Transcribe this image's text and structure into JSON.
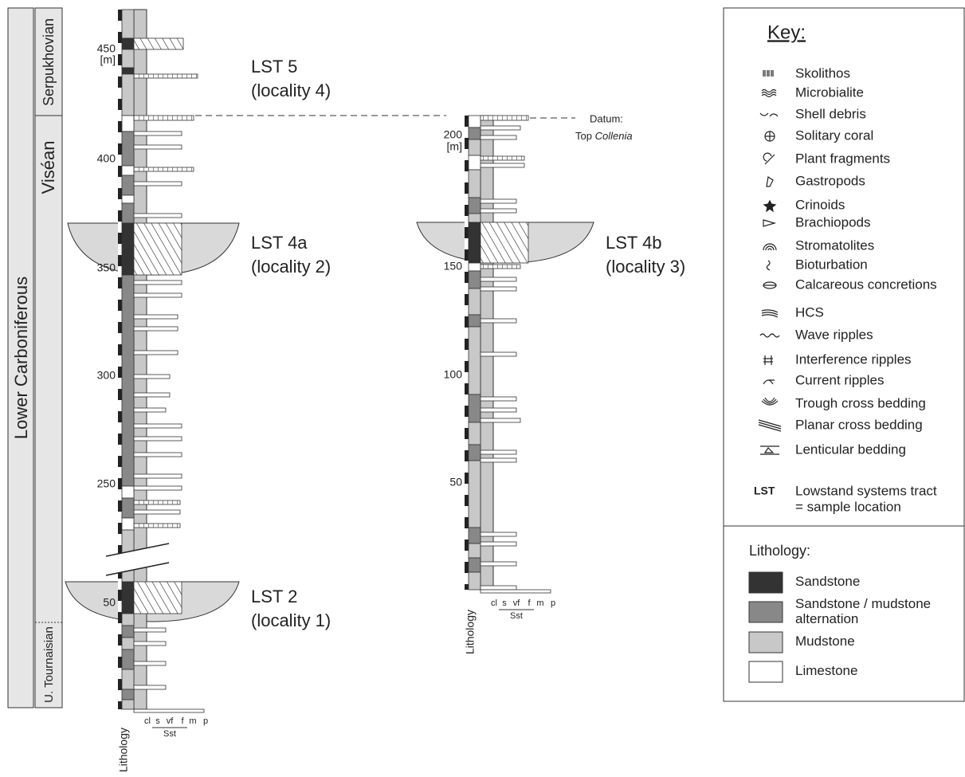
{
  "chronostratigraphy": {
    "system": "Lower Carboniferous",
    "stages": [
      "Serpukhovian",
      "Viséan",
      "U. Tournaisian"
    ]
  },
  "sections": [
    {
      "depth_labels": [
        450,
        "[m]",
        400,
        350,
        300,
        250,
        50
      ],
      "lst_labels": [
        {
          "name": "LST 5",
          "locality": "(locality 4)"
        },
        {
          "name": "LST 4a",
          "locality": "(locality 2)"
        },
        {
          "name": "LST 2",
          "locality": "(locality 1)"
        }
      ],
      "lithology_label": "Lithology",
      "grain_sizes": [
        "cl",
        "s",
        "vf",
        "f",
        "m",
        "p"
      ],
      "grain_group": "Sst"
    },
    {
      "depth_labels": [
        200,
        "[m]",
        150,
        100,
        50
      ],
      "lst_labels": [
        {
          "name": "LST 4b",
          "locality": "(locality 3)"
        }
      ],
      "lithology_label": "Lithology",
      "grain_sizes": [
        "cl",
        "s",
        "vf",
        "f",
        "m",
        "p"
      ],
      "grain_group": "Sst"
    }
  ],
  "datum": {
    "label": "Datum:",
    "prefix": "Top",
    "name": "Collenia"
  },
  "key": {
    "title": "Key:",
    "symbols": [
      "Skolithos",
      "Microbialite",
      "Shell debris",
      "Solitary coral",
      "Plant fragments",
      "Gastropods",
      "Crinoids",
      "Brachiopods",
      "Stromatolites",
      "Bioturbation",
      "Calcareous concretions",
      "HCS",
      "Wave ripples",
      "Interference ripples",
      "Current ripples",
      "Trough cross bedding",
      "Planar cross bedding",
      "Lenticular bedding"
    ],
    "lst": {
      "abbr": "LST",
      "lines": [
        "Lowstand systems tract",
        "= sample location"
      ]
    },
    "lithology": {
      "title": "Lithology:",
      "items": [
        "Sandstone",
        "Sandstone / mudstone alternation",
        "Mudstone",
        "Limestone"
      ]
    }
  }
}
